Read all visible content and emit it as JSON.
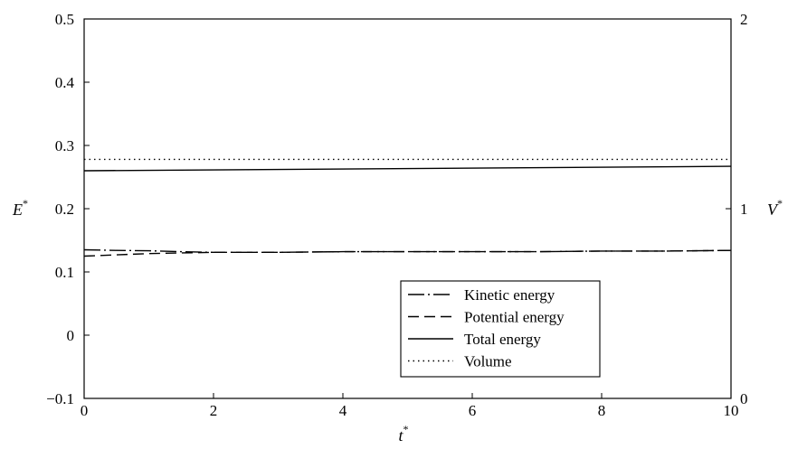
{
  "chart_data": {
    "type": "line",
    "xlabel": {
      "symbol": "t",
      "sup": "*"
    },
    "ylabel_left": {
      "symbol": "E",
      "sup": "*"
    },
    "ylabel_right": {
      "symbol": "V",
      "sup": "*"
    },
    "xlim": [
      0,
      10
    ],
    "ylim_left": [
      -0.1,
      0.5
    ],
    "ylim_right": [
      0,
      2
    ],
    "x_ticks": [
      0,
      2,
      4,
      6,
      8,
      10
    ],
    "x_tick_labels": [
      "0",
      "2",
      "4",
      "6",
      "8",
      "10"
    ],
    "y_left_ticks": [
      -0.1,
      0,
      0.1,
      0.2,
      0.3,
      0.4,
      0.5
    ],
    "y_left_tick_labels": [
      "−0.1",
      "0",
      "0.1",
      "0.2",
      "0.3",
      "0.4",
      "0.5"
    ],
    "y_right_ticks": [
      0,
      1,
      2
    ],
    "y_right_tick_labels": [
      "0",
      "1",
      "2"
    ],
    "grid": false,
    "legend_position": "lower-right",
    "series": [
      {
        "name": "Kinetic energy",
        "axis": "left",
        "dash": "18,4,2,4",
        "x": [
          0,
          0.5,
          1,
          1.5,
          2,
          3,
          4,
          5,
          6,
          7,
          8,
          9,
          10
        ],
        "y": [
          0.135,
          0.134,
          0.1335,
          0.132,
          0.131,
          0.131,
          0.132,
          0.132,
          0.132,
          0.132,
          0.133,
          0.133,
          0.134
        ]
      },
      {
        "name": "Potential energy",
        "axis": "left",
        "dash": "12,6",
        "x": [
          0,
          0.5,
          1,
          1.5,
          2,
          3,
          4,
          5,
          6,
          7,
          8,
          9,
          10
        ],
        "y": [
          0.125,
          0.127,
          0.129,
          0.13,
          0.131,
          0.131,
          0.132,
          0.132,
          0.132,
          0.132,
          0.133,
          0.133,
          0.134
        ]
      },
      {
        "name": "Total energy",
        "axis": "left",
        "dash": "",
        "x": [
          0,
          10
        ],
        "y": [
          0.26,
          0.267
        ]
      },
      {
        "name": "Volume",
        "axis": "right",
        "dash": "1.5,4",
        "x": [
          0,
          10
        ],
        "y": [
          1.26,
          1.26
        ]
      }
    ]
  }
}
